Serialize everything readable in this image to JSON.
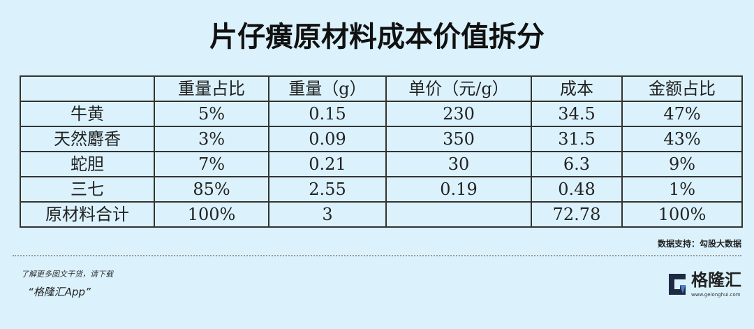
{
  "title": "片仔癀原材料成本价值拆分",
  "table": {
    "headers": [
      "",
      "重量占比",
      "重量（g）",
      "单价（元/g）",
      "成本",
      "金额占比"
    ],
    "rows": [
      [
        "牛黄",
        "5%",
        "0.15",
        "230",
        "34.5",
        "47%"
      ],
      [
        "天然麝香",
        "3%",
        "0.09",
        "350",
        "31.5",
        "43%"
      ],
      [
        "蛇胆",
        "7%",
        "0.21",
        "30",
        "6.3",
        "9%"
      ],
      [
        "三七",
        "85%",
        "2.55",
        "0.19",
        "0.48",
        "1%"
      ],
      [
        "原材料合计",
        "100%",
        "3",
        "",
        "72.78",
        "100%"
      ]
    ]
  },
  "source": "数据支持：勾股大数据",
  "footer": {
    "line1": "了解更多图文干货，请下载",
    "line2": "“格隆汇App”"
  },
  "logo": {
    "text": "格隆汇",
    "url": "www.gelonghui.com",
    "color": "#1e2a44"
  }
}
